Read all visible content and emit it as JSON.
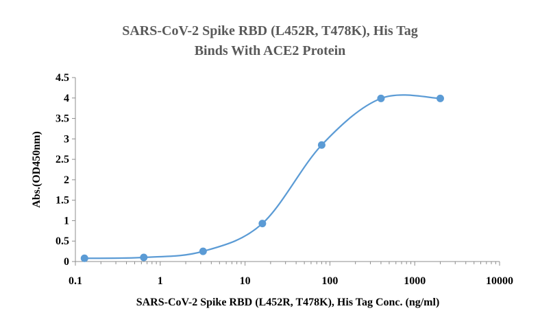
{
  "chart_data": {
    "type": "scatter",
    "title_lines": [
      "SARS-CoV-2 Spike RBD (L452R, T478K), His Tag",
      "Binds With ACE2 Protein"
    ],
    "xlabel": "SARS-CoV-2 Spike RBD (L452R, T478K), His Tag Conc. (ng/ml)",
    "ylabel": "Abs.(OD450nm)",
    "x_scale": "log",
    "xlim": [
      0.1,
      10000
    ],
    "ylim": [
      0,
      4.5
    ],
    "x_ticks": [
      "0.1",
      "1",
      "10",
      "100",
      "1000",
      "10000"
    ],
    "y_ticks": [
      "0",
      "0.5",
      "1",
      "1.5",
      "2",
      "2.5",
      "3",
      "3.5",
      "4",
      "4.5"
    ],
    "grid": false,
    "legend": "none",
    "smooth_line": true,
    "series": [
      {
        "color": "#5B9BD5",
        "x": [
          0.128,
          0.64,
          3.2,
          16,
          80,
          400,
          2000
        ],
        "y": [
          0.08,
          0.1,
          0.25,
          0.93,
          2.85,
          3.99,
          3.99
        ]
      }
    ]
  }
}
